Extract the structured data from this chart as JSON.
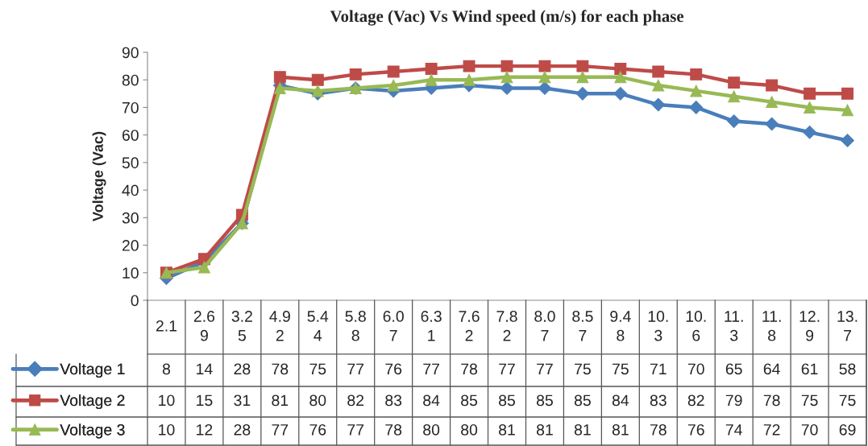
{
  "chart_data": {
    "type": "line",
    "title": "Voltage (Vac) Vs Wind speed (m/s) for each phase",
    "ylabel": "Voltage (Vac)",
    "categories": [
      "2.1",
      "2.69",
      "3.25",
      "4.92",
      "5.44",
      "5.88",
      "6.07",
      "6.31",
      "7.62",
      "7.82",
      "8.07",
      "8.57",
      "9.48",
      "10.3",
      "10.6",
      "11.3",
      "11.8",
      "12.9",
      "13.7"
    ],
    "series": [
      {
        "name": "Voltage 1",
        "color": "#4a7ebb",
        "marker": "diamond",
        "values": [
          8,
          14,
          28,
          78,
          75,
          77,
          76,
          77,
          78,
          77,
          77,
          75,
          75,
          71,
          70,
          65,
          64,
          61,
          58
        ]
      },
      {
        "name": "Voltage 2",
        "color": "#be4b48",
        "marker": "square",
        "values": [
          10,
          15,
          31,
          81,
          80,
          82,
          83,
          84,
          85,
          85,
          85,
          85,
          84,
          83,
          82,
          79,
          78,
          75,
          75
        ]
      },
      {
        "name": "Voltage 3",
        "color": "#98b954",
        "marker": "triangle",
        "values": [
          10,
          12,
          28,
          77,
          76,
          77,
          78,
          80,
          80,
          81,
          81,
          81,
          81,
          78,
          76,
          74,
          72,
          70,
          69
        ]
      }
    ],
    "ylim": [
      0,
      90
    ],
    "yticks": [
      0,
      10,
      20,
      30,
      40,
      50,
      60,
      70,
      80,
      90
    ],
    "grid": false,
    "legend": "bottom",
    "data_labels": true,
    "line_style": "solid"
  }
}
